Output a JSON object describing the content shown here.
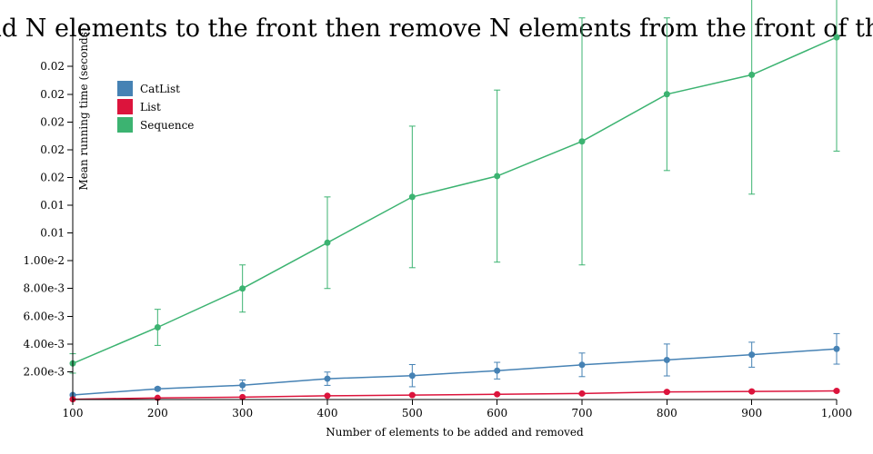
{
  "chart_data": {
    "type": "line",
    "title": "Add N elements to the front then remove N elements from the front of the list",
    "xlabel": "Number of elements to be added and removed",
    "ylabel": "Mean running time (seconds)",
    "xlim": [
      100,
      1000
    ],
    "ylim": [
      0,
      0.0265
    ],
    "x_ticks": [
      100,
      200,
      300,
      400,
      500,
      600,
      700,
      800,
      900,
      1000
    ],
    "x_tick_labels": [
      "100",
      "200",
      "300",
      "400",
      "500",
      "600",
      "700",
      "800",
      "900",
      "1,000"
    ],
    "y_ticks": [
      0.002,
      0.004,
      0.006,
      0.008,
      0.01,
      0.012,
      0.014,
      0.016,
      0.018,
      0.02,
      0.022,
      0.024
    ],
    "y_tick_labels": [
      "2.00e-3",
      "4.00e-3",
      "6.00e-3",
      "8.00e-3",
      "1.00e-2",
      "0.01",
      "0.01",
      "0.02",
      "0.02",
      "0.02",
      "0.02",
      "0.02"
    ],
    "legend_position": "top-left",
    "grid": false,
    "series": [
      {
        "name": "CatList",
        "color": "#4682b4",
        "marker": "circle",
        "x": [
          100,
          200,
          300,
          400,
          500,
          600,
          700,
          800,
          900,
          1000
        ],
        "y": [
          0.00033,
          0.00077,
          0.00103,
          0.0015,
          0.00172,
          0.00208,
          0.0025,
          0.00285,
          0.00323,
          0.00365
        ],
        "err": [
          5e-05,
          0.0001,
          0.00038,
          0.00048,
          0.0008,
          0.0006,
          0.00085,
          0.00115,
          0.0009,
          0.0011
        ]
      },
      {
        "name": "List",
        "color": "#dc143c",
        "marker": "circle",
        "x": [
          100,
          200,
          300,
          400,
          500,
          600,
          700,
          800,
          900,
          1000
        ],
        "y": [
          2e-05,
          0.00012,
          0.00017,
          0.00027,
          0.00032,
          0.00038,
          0.00043,
          0.00055,
          0.00058,
          0.00062
        ],
        "err": [
          1e-05,
          2e-05,
          3e-05,
          4e-05,
          4e-05,
          5e-05,
          6e-05,
          6e-05,
          6e-05,
          7e-05
        ]
      },
      {
        "name": "Sequence",
        "color": "#3cb371",
        "marker": "circle",
        "x": [
          100,
          200,
          300,
          400,
          500,
          600,
          700,
          800,
          900,
          1000
        ],
        "y": [
          0.0026,
          0.0052,
          0.008,
          0.0113,
          0.0146,
          0.0161,
          0.0186,
          0.022,
          0.0234,
          0.0261
        ],
        "err": [
          0.0007,
          0.0013,
          0.0017,
          0.0033,
          0.0051,
          0.0062,
          0.0089,
          0.0055,
          0.0086,
          0.0082
        ]
      }
    ]
  }
}
